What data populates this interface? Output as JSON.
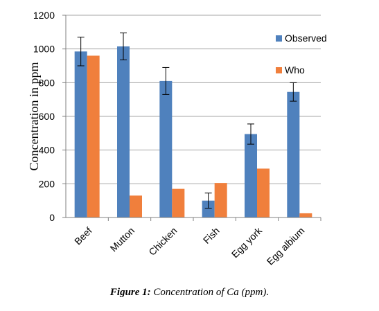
{
  "chart_data": {
    "type": "bar",
    "categories": [
      "Beef",
      "Mutton",
      "Chicken",
      "Fish",
      "Egg york",
      "Egg albium"
    ],
    "series": [
      {
        "name": "Observed",
        "color": "#4F81BD",
        "values": [
          985,
          1015,
          810,
          100,
          495,
          745
        ],
        "error": [
          85,
          80,
          80,
          45,
          60,
          55
        ]
      },
      {
        "name": "Who",
        "color": "#F07F3C",
        "values": [
          960,
          130,
          170,
          205,
          290,
          25
        ]
      }
    ],
    "ylabel": "Concentration in ppm",
    "ylim": [
      0,
      1200
    ],
    "yticks": [
      "0",
      "200",
      "400",
      "600",
      "800",
      "1000",
      "1200"
    ],
    "grid": true,
    "legend": "right"
  },
  "caption": {
    "label": "Figure 1:",
    "text": "Concentration of Ca (ppm)."
  }
}
